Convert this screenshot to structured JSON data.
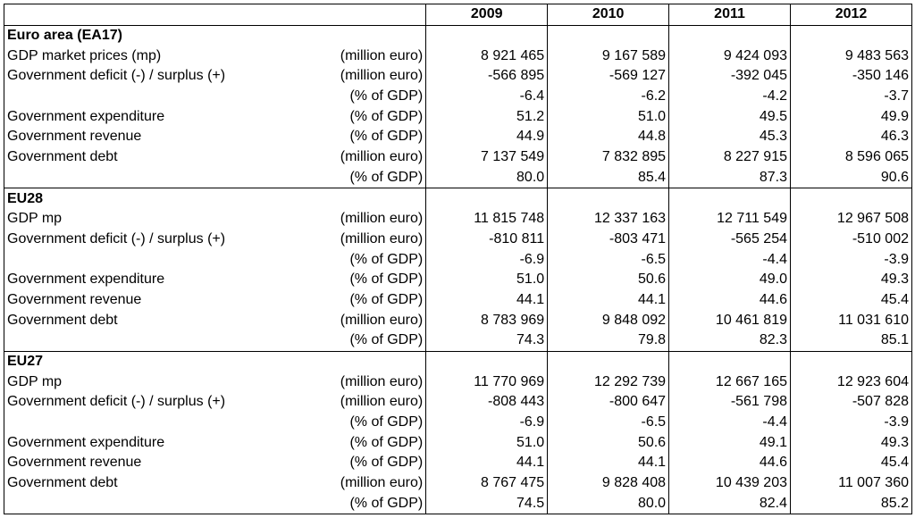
{
  "header": {
    "years": [
      "2009",
      "2010",
      "2011",
      "2012"
    ]
  },
  "sections": [
    {
      "title": "Euro area (EA17)",
      "rows": [
        {
          "label": "GDP market prices (mp)",
          "unit": "(million euro)",
          "values": [
            "8 921 465",
            "9 167 589",
            "9 424 093",
            "9 483 563"
          ]
        },
        {
          "label": "Government deficit (-) / surplus (+)",
          "unit": "(million euro)",
          "values": [
            "-566 895",
            "-569 127",
            "-392 045",
            "-350 146"
          ]
        },
        {
          "label": "",
          "unit": "(% of GDP)",
          "values": [
            "-6.4",
            "-6.2",
            "-4.2",
            "-3.7"
          ]
        },
        {
          "label": "Government expenditure",
          "unit": "(% of GDP)",
          "values": [
            "51.2",
            "51.0",
            "49.5",
            "49.9"
          ]
        },
        {
          "label": "Government revenue",
          "unit": "(% of GDP)",
          "values": [
            "44.9",
            "44.8",
            "45.3",
            "46.3"
          ]
        },
        {
          "label": "Government debt",
          "unit": "(million euro)",
          "values": [
            "7 137 549",
            "7 832 895",
            "8 227 915",
            "8 596 065"
          ]
        },
        {
          "label": "",
          "unit": "(% of GDP)",
          "values": [
            "80.0",
            "85.4",
            "87.3",
            "90.6"
          ]
        }
      ]
    },
    {
      "title": "EU28",
      "rows": [
        {
          "label": "GDP mp",
          "unit": "(million euro)",
          "values": [
            "11 815 748",
            "12 337 163",
            "12 711 549",
            "12 967 508"
          ]
        },
        {
          "label": "Government deficit (-) / surplus (+)",
          "unit": "(million euro)",
          "values": [
            "-810 811",
            "-803 471",
            "-565 254",
            "-510 002"
          ]
        },
        {
          "label": "",
          "unit": "(% of GDP)",
          "values": [
            "-6.9",
            "-6.5",
            "-4.4",
            "-3.9"
          ]
        },
        {
          "label": "Government expenditure",
          "unit": "(% of GDP)",
          "values": [
            "51.0",
            "50.6",
            "49.0",
            "49.3"
          ]
        },
        {
          "label": "Government revenue",
          "unit": "(% of GDP)",
          "values": [
            "44.1",
            "44.1",
            "44.6",
            "45.4"
          ]
        },
        {
          "label": "Government debt",
          "unit": "(million euro)",
          "values": [
            "8 783 969",
            "9 848 092",
            "10 461 819",
            "11 031 610"
          ]
        },
        {
          "label": "",
          "unit": "(% of GDP)",
          "values": [
            "74.3",
            "79.8",
            "82.3",
            "85.1"
          ]
        }
      ]
    },
    {
      "title": "EU27",
      "rows": [
        {
          "label": "GDP mp",
          "unit": "(million euro)",
          "values": [
            "11 770 969",
            "12 292 739",
            "12 667 165",
            "12 923 604"
          ]
        },
        {
          "label": "Government deficit (-) / surplus (+)",
          "unit": "(million euro)",
          "values": [
            "-808 443",
            "-800 647",
            "-561 798",
            "-507 828"
          ]
        },
        {
          "label": "",
          "unit": "(% of GDP)",
          "values": [
            "-6.9",
            "-6.5",
            "-4.4",
            "-3.9"
          ]
        },
        {
          "label": "Government expenditure",
          "unit": "(% of GDP)",
          "values": [
            "51.0",
            "50.6",
            "49.1",
            "49.3"
          ]
        },
        {
          "label": "Government revenue",
          "unit": "(% of GDP)",
          "values": [
            "44.1",
            "44.1",
            "44.6",
            "45.4"
          ]
        },
        {
          "label": "Government debt",
          "unit": "(million euro)",
          "values": [
            "8 767 475",
            "9 828 408",
            "10 439 203",
            "11 007 360"
          ]
        },
        {
          "label": "",
          "unit": "(% of GDP)",
          "values": [
            "74.5",
            "80.0",
            "82.4",
            "85.2"
          ]
        }
      ]
    }
  ]
}
